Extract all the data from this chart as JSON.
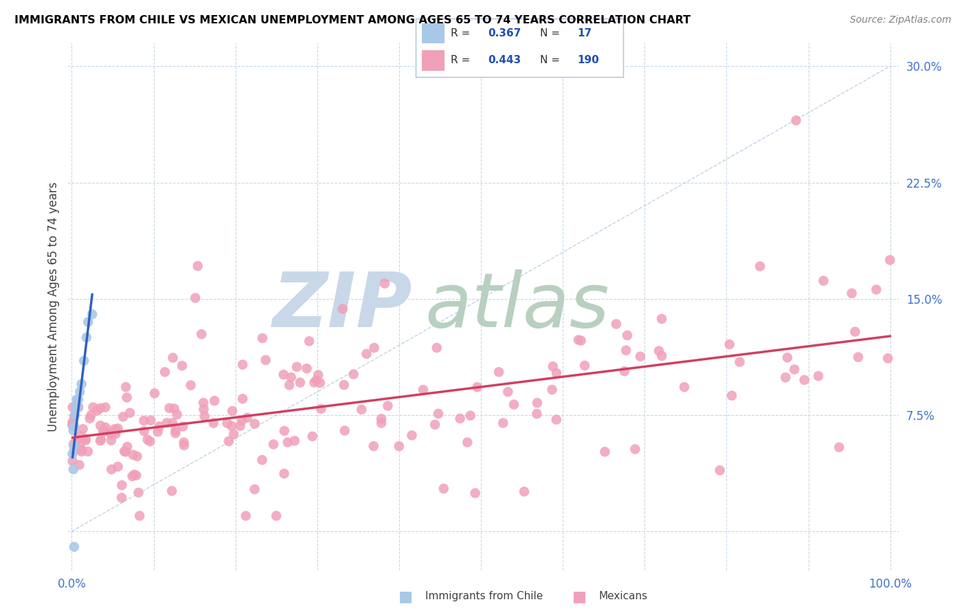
{
  "title": "IMMIGRANTS FROM CHILE VS MEXICAN UNEMPLOYMENT AMONG AGES 65 TO 74 YEARS CORRELATION CHART",
  "source": "Source: ZipAtlas.com",
  "ylabel": "Unemployment Among Ages 65 to 74 years",
  "chile_color": "#a8c8e8",
  "mexico_color": "#f0a0b8",
  "chile_trend_color": "#3060c0",
  "mexico_trend_color": "#d04060",
  "legend_box_color": "#c8d8f0",
  "legend_text_color": "#2050b0",
  "watermark_zip_color": "#c8d8e8",
  "watermark_atlas_color": "#b8d0c0",
  "grid_color": "#c8d8e8",
  "diag_color": "#b0c8e0",
  "right_tick_color": "#4070d0",
  "bottom_tick_color": "#4070d0"
}
